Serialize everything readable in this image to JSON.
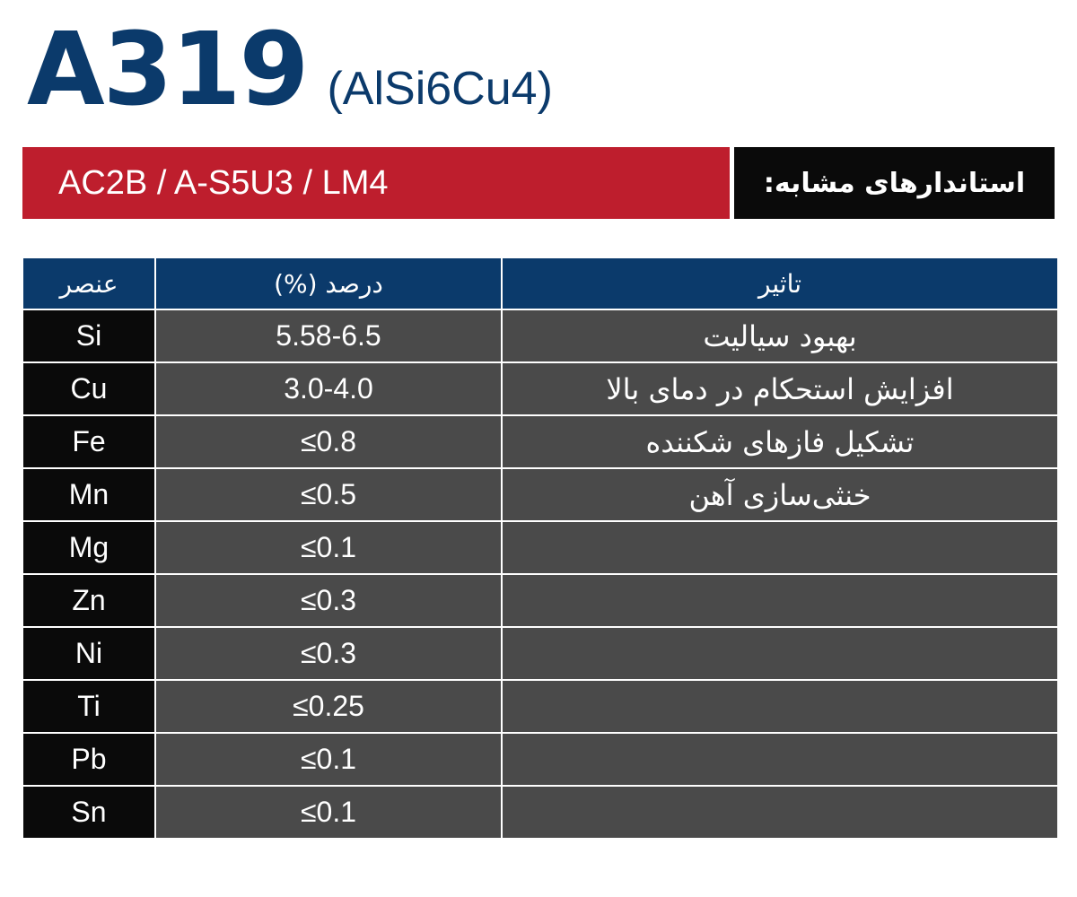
{
  "title": {
    "main": "A319",
    "sub": "(AlSi6Cu4)"
  },
  "standards": {
    "values": "AC2B / A-S5U3 / LM4",
    "label": "استاندارهای مشابه:"
  },
  "table": {
    "headers": {
      "element": "عنصر",
      "percent": "درصد (%)",
      "effect": "تاثیر"
    },
    "rows": [
      {
        "element": "Si",
        "percent": "5.58-6.5",
        "effect": "بهبود سیالیت"
      },
      {
        "element": "Cu",
        "percent": "3.0-4.0",
        "effect": "افزایش استحکام در دمای بالا"
      },
      {
        "element": "Fe",
        "percent": "≤0.8",
        "effect": "تشکیل فازهای شکننده"
      },
      {
        "element": "Mn",
        "percent": "≤0.5",
        "effect": "خنثی‌سازی آهن"
      },
      {
        "element": "Mg",
        "percent": "≤0.1",
        "effect": ""
      },
      {
        "element": "Zn",
        "percent": "≤0.3",
        "effect": ""
      },
      {
        "element": "Ni",
        "percent": "≤0.3",
        "effect": ""
      },
      {
        "element": "Ti",
        "percent": "≤0.25",
        "effect": ""
      },
      {
        "element": "Pb",
        "percent": "≤0.1",
        "effect": ""
      },
      {
        "element": "Sn",
        "percent": "≤0.1",
        "effect": ""
      }
    ]
  }
}
